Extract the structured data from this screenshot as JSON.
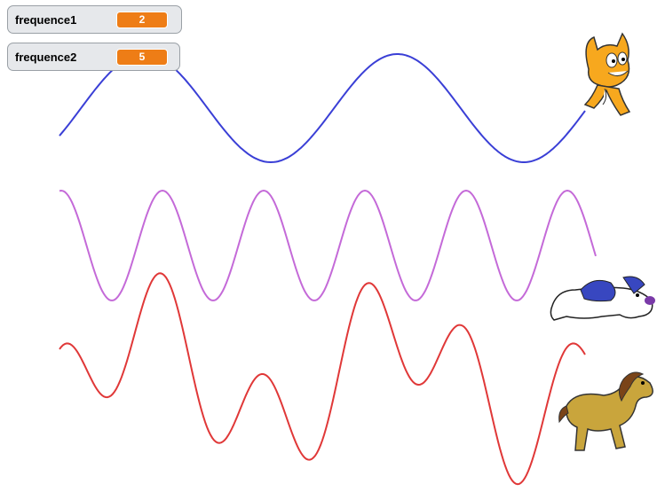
{
  "monitors": [
    {
      "label": "frequence1",
      "value": 2
    },
    {
      "label": "frequence2",
      "value": 5
    }
  ]
}
